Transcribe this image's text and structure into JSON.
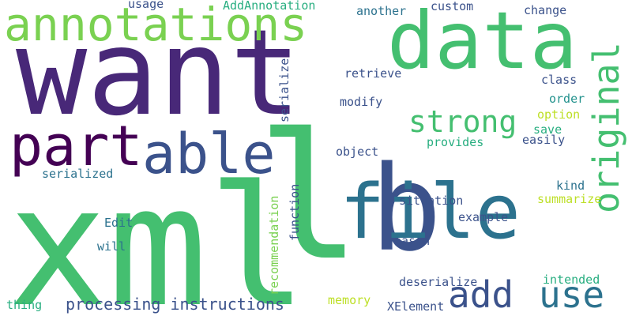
{
  "cloud": {
    "words": {
      "xml": {
        "text": "xml",
        "color": "#44bf70"
      },
      "l": {
        "text": "l",
        "color": "#44bf70"
      },
      "want": {
        "text": "want",
        "color": "#482878"
      },
      "q": {
        "text": "q",
        "color": "#3b528b"
      },
      "data": {
        "text": "data",
        "color": "#44bf70"
      },
      "file": {
        "text": "file",
        "color": "#2c728e"
      },
      "annotations": {
        "text": "annotations",
        "color": "#7ad151"
      },
      "part": {
        "text": "part",
        "color": "#440154"
      },
      "able": {
        "text": "able",
        "color": "#3b528b"
      },
      "original": {
        "text": "original",
        "color": "#44bf70"
      },
      "strong": {
        "text": "strong",
        "color": "#44bf70"
      },
      "add": {
        "text": "add",
        "color": "#3b528b"
      },
      "use": {
        "text": "use",
        "color": "#2c728e"
      },
      "processing": {
        "text": "processing instructions",
        "color": "#3b528b"
      },
      "serialized": {
        "text": "serialized",
        "color": "#2c728e"
      },
      "edit": {
        "text": "Edit",
        "color": "#2c728e"
      },
      "will": {
        "text": "will",
        "color": "#2c728e"
      },
      "thing": {
        "text": "thing",
        "color": "#28ae80"
      },
      "usage": {
        "text": "usage",
        "color": "#3b528b"
      },
      "addann": {
        "text": "AddAnnotation",
        "color": "#28ae80"
      },
      "another": {
        "text": "another",
        "color": "#2c728e"
      },
      "custom": {
        "text": "custom",
        "color": "#3b528b"
      },
      "change": {
        "text": "change",
        "color": "#3b528b"
      },
      "retrieve": {
        "text": "retrieve",
        "color": "#3b528b"
      },
      "modify": {
        "text": "modify",
        "color": "#3b528b"
      },
      "class": {
        "text": "class",
        "color": "#3b528b"
      },
      "order": {
        "text": "order",
        "color": "#21918c"
      },
      "option": {
        "text": "option",
        "color": "#bddf26"
      },
      "save": {
        "text": "save",
        "color": "#28ae80"
      },
      "easily": {
        "text": "easily",
        "color": "#3b528b"
      },
      "provides": {
        "text": "provides",
        "color": "#28ae80"
      },
      "object": {
        "text": "object",
        "color": "#3b528b"
      },
      "serialize": {
        "text": "serialize",
        "color": "#3b528b"
      },
      "function": {
        "text": "function",
        "color": "#3b528b"
      },
      "recommend": {
        "text": "recommendation",
        "color": "#7ad151"
      },
      "kind": {
        "text": "kind",
        "color": "#2c728e"
      },
      "summarize": {
        "text": "summarize",
        "color": "#bddf26"
      },
      "situation": {
        "text": "situation",
        "color": "#3b528b"
      },
      "example": {
        "text": "example",
        "color": "#3b528b"
      },
      "reason": {
        "text": "reason",
        "color": "#3b528b"
      },
      "intended": {
        "text": "intended",
        "color": "#28ae80"
      },
      "deserialize": {
        "text": "deserialize",
        "color": "#3b528b"
      },
      "memory": {
        "text": "memory",
        "color": "#bddf26"
      },
      "xelement": {
        "text": "XElement",
        "color": "#3b528b"
      }
    }
  }
}
